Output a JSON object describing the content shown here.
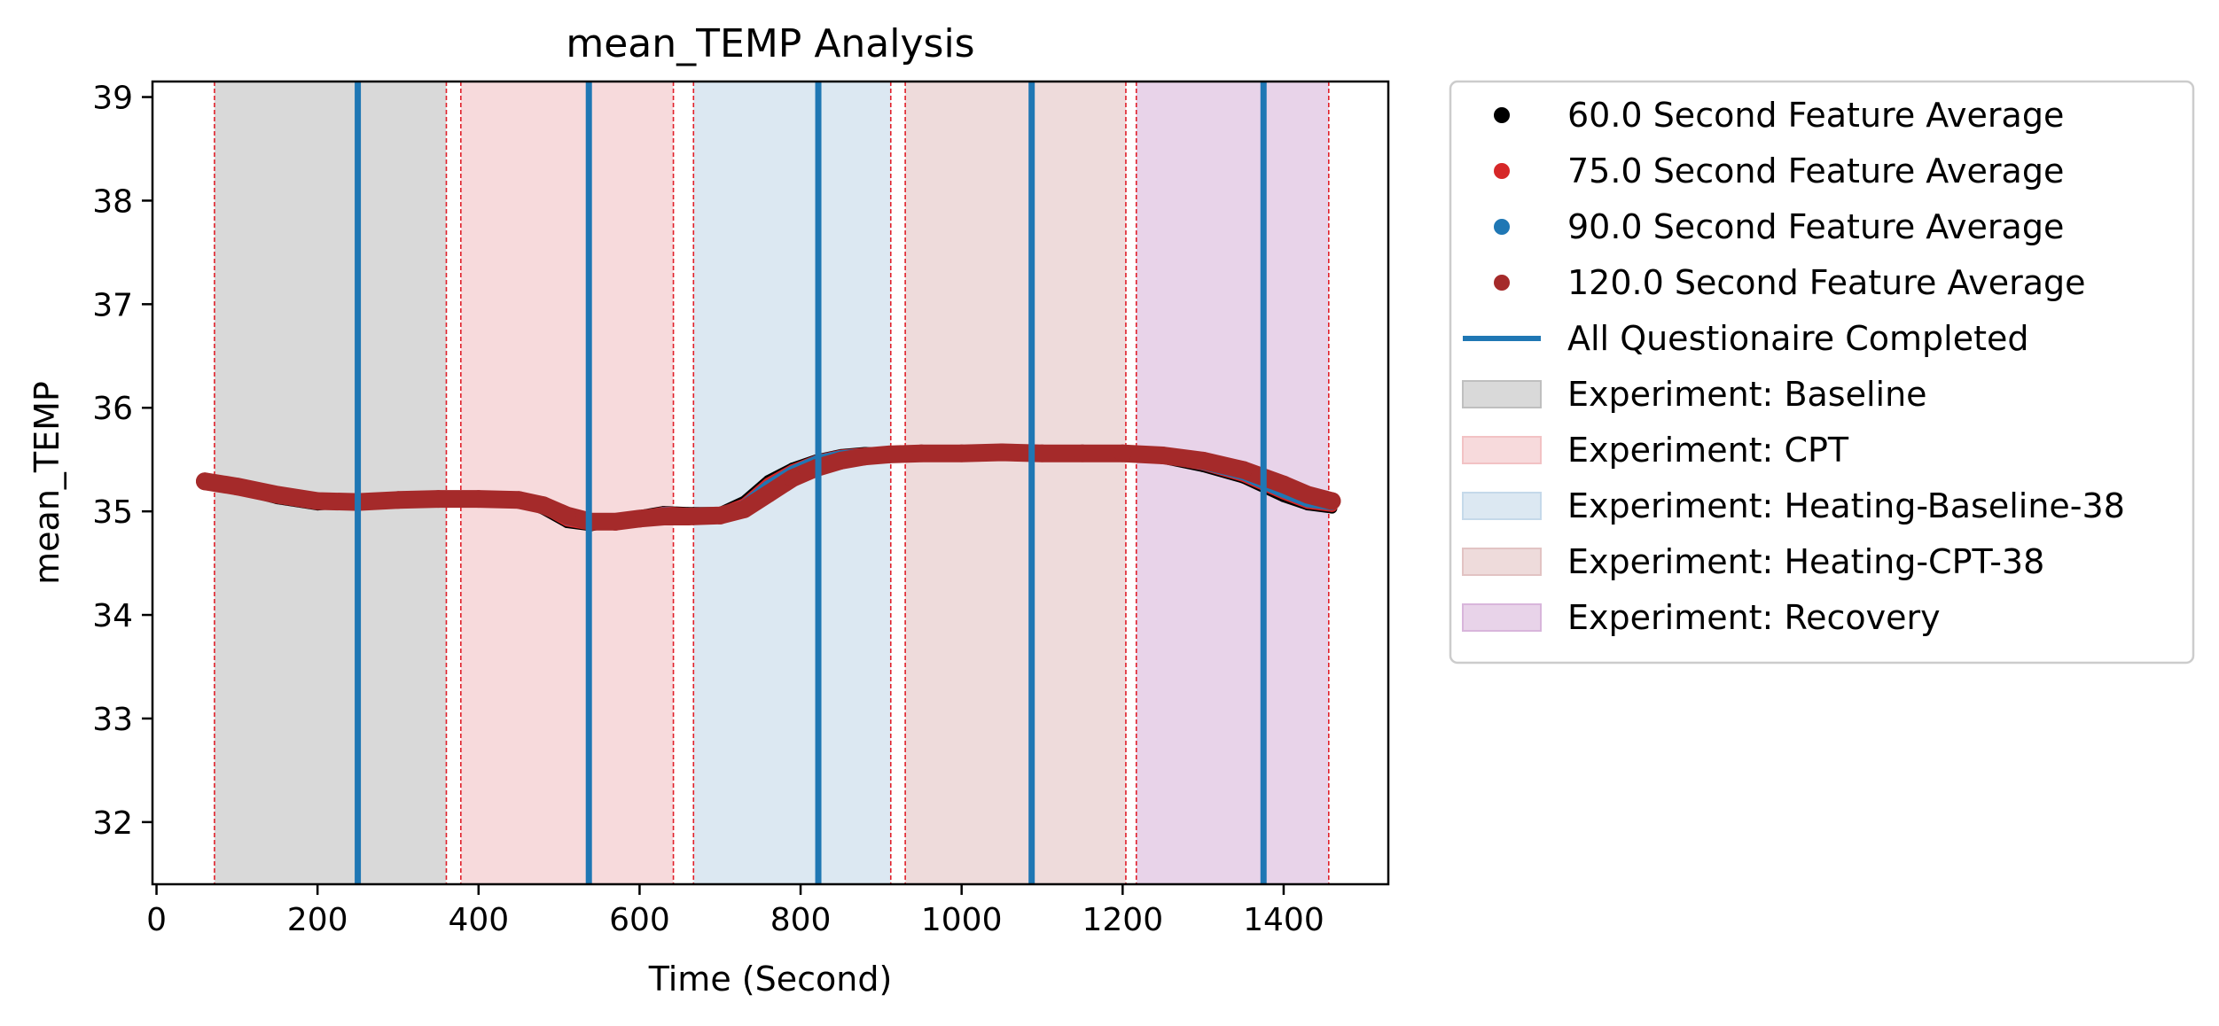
{
  "chart_data": {
    "type": "line",
    "title": "mean_TEMP Analysis",
    "xlabel": "Time (Second)",
    "ylabel": "mean_TEMP",
    "xlim": [
      -5,
      1530
    ],
    "ylim": [
      31.4,
      39.15
    ],
    "xticks": [
      0,
      200,
      400,
      600,
      800,
      1000,
      1200,
      1400
    ],
    "yticks": [
      32,
      33,
      34,
      35,
      36,
      37,
      38,
      39
    ],
    "grid": false,
    "legend_position": "outside-right",
    "experiments": [
      {
        "name": "Experiment: Baseline",
        "start": 72,
        "end": 360,
        "color": "#bfbfbf"
      },
      {
        "name": "Experiment: CPT",
        "start": 378,
        "end": 642,
        "color": "#f2c2c4"
      },
      {
        "name": "Experiment: Heating-Baseline-38",
        "start": 667,
        "end": 912,
        "color": "#c5d9ea"
      },
      {
        "name": "Experiment: Heating-CPT-38",
        "start": 930,
        "end": 1204,
        "color": "#e2c3c3"
      },
      {
        "name": "Experiment: Recovery",
        "start": 1217,
        "end": 1456,
        "color": "#d8b5db"
      }
    ],
    "questionnaire_markers": {
      "name": "All Questionaire Completed",
      "color": "#1f77b4",
      "x": [
        250,
        537,
        822,
        1087,
        1375
      ]
    },
    "series": [
      {
        "name": "60.0 Second Feature Average",
        "color": "#000000",
        "x": [
          60,
          100,
          150,
          200,
          250,
          300,
          350,
          400,
          450,
          480,
          510,
          540,
          570,
          600,
          630,
          660,
          700,
          730,
          760,
          790,
          820,
          850,
          880,
          910,
          950,
          1000,
          1050,
          1100,
          1150,
          1200,
          1250,
          1300,
          1350,
          1400,
          1430,
          1460
        ],
        "y": [
          35.28,
          35.22,
          35.12,
          35.06,
          35.09,
          35.13,
          35.13,
          35.13,
          35.11,
          35.02,
          34.89,
          34.86,
          34.9,
          34.96,
          35.0,
          34.99,
          34.99,
          35.1,
          35.3,
          35.42,
          35.5,
          35.55,
          35.57,
          35.56,
          35.57,
          35.58,
          35.59,
          35.57,
          35.56,
          35.56,
          35.51,
          35.43,
          35.32,
          35.14,
          35.06,
          35.03
        ]
      },
      {
        "name": "75.0 Second Feature Average",
        "color": "#d62728",
        "x": [
          60,
          100,
          150,
          200,
          250,
          300,
          350,
          400,
          450,
          480,
          510,
          540,
          570,
          600,
          630,
          660,
          700,
          730,
          760,
          790,
          820,
          850,
          880,
          910,
          950,
          1000,
          1050,
          1100,
          1150,
          1200,
          1250,
          1300,
          1350,
          1400,
          1430,
          1460
        ],
        "y": [
          35.29,
          35.23,
          35.13,
          35.07,
          35.08,
          35.12,
          35.13,
          35.13,
          35.12,
          35.04,
          34.91,
          34.87,
          34.9,
          34.95,
          34.99,
          34.98,
          34.98,
          35.07,
          35.27,
          35.4,
          35.49,
          35.54,
          35.56,
          35.56,
          35.57,
          35.58,
          35.58,
          35.57,
          35.56,
          35.56,
          35.52,
          35.45,
          35.34,
          35.17,
          35.08,
          35.05
        ]
      },
      {
        "name": "90.0 Second Feature Average",
        "color": "#1f77b4",
        "x": [
          60,
          100,
          150,
          200,
          250,
          300,
          350,
          400,
          450,
          480,
          510,
          540,
          570,
          600,
          630,
          660,
          700,
          730,
          760,
          790,
          820,
          850,
          880,
          910,
          950,
          1000,
          1050,
          1100,
          1150,
          1200,
          1250,
          1300,
          1350,
          1400,
          1430,
          1460
        ],
        "y": [
          35.29,
          35.23,
          35.14,
          35.08,
          35.08,
          35.11,
          35.12,
          35.13,
          35.12,
          35.05,
          34.93,
          34.88,
          34.9,
          34.94,
          34.98,
          34.97,
          34.97,
          35.05,
          35.24,
          35.38,
          35.48,
          35.53,
          35.55,
          35.56,
          35.57,
          35.58,
          35.58,
          35.57,
          35.56,
          35.56,
          35.53,
          35.46,
          35.36,
          35.19,
          35.1,
          35.07
        ]
      },
      {
        "name": "120.0 Second Feature Average",
        "color": "#a52a2a",
        "x": [
          60,
          100,
          150,
          200,
          250,
          300,
          350,
          400,
          450,
          480,
          510,
          540,
          570,
          600,
          630,
          660,
          700,
          730,
          760,
          790,
          820,
          850,
          880,
          910,
          950,
          1000,
          1050,
          1100,
          1150,
          1200,
          1250,
          1300,
          1350,
          1400,
          1430,
          1460
        ],
        "y": [
          35.29,
          35.24,
          35.16,
          35.1,
          35.09,
          35.11,
          35.12,
          35.12,
          35.11,
          35.06,
          34.96,
          34.9,
          34.9,
          34.93,
          34.95,
          34.95,
          34.96,
          35.02,
          35.17,
          35.32,
          35.42,
          35.49,
          35.53,
          35.55,
          35.56,
          35.56,
          35.57,
          35.56,
          35.56,
          35.56,
          35.54,
          35.49,
          35.4,
          35.26,
          35.16,
          35.1
        ]
      }
    ]
  }
}
